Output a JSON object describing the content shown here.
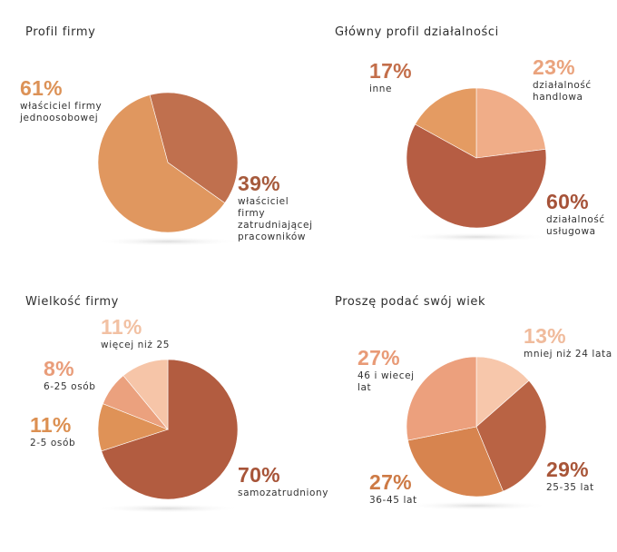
{
  "chart_data": [
    {
      "type": "pie",
      "title": "Profil firmy",
      "slices": [
        {
          "name": "właściciel firmy\nzatrudniającej\npracowników",
          "value": 39,
          "pct_label": "39%",
          "color": "#c0704e"
        },
        {
          "name": "właściciel firmy\njednoosobowej",
          "value": 61,
          "pct_label": "61%",
          "color": "#e0975f"
        }
      ],
      "label_colors": [
        "#a65a3c",
        "#dc9257"
      ]
    },
    {
      "type": "pie",
      "title": "Główny profil działalności",
      "slices": [
        {
          "name": "działalność\nhandlowa",
          "value": 23,
          "pct_label": "23%",
          "color": "#f0ad88"
        },
        {
          "name": "działalność\nusługowa",
          "value": 60,
          "pct_label": "60%",
          "color": "#b65d43"
        },
        {
          "name": "inne",
          "value": 17,
          "pct_label": "17%",
          "color": "#e49b62"
        }
      ],
      "label_colors": [
        "#eaa37d",
        "#a65238",
        "#c36e4a"
      ]
    },
    {
      "type": "pie",
      "title": "Wielkość firmy",
      "slices": [
        {
          "name": "samozatrudniony",
          "value": 70,
          "pct_label": "70%",
          "color": "#b25c40"
        },
        {
          "name": "2-5 osób",
          "value": 11,
          "pct_label": "11%",
          "color": "#df9257"
        },
        {
          "name": "6-25 osób",
          "value": 8,
          "pct_label": "8%",
          "color": "#eba17e"
        },
        {
          "name": "więcej niż 25",
          "value": 11,
          "pct_label": "11%",
          "color": "#f6c5a8"
        }
      ],
      "label_colors": [
        "#a75438",
        "#dc9052",
        "#e99d7a",
        "#f2c1a3"
      ]
    },
    {
      "type": "pie",
      "title": "Proszę podać swój wiek",
      "slices": [
        {
          "name": "mniej niż 24 lata",
          "value": 13,
          "pct_label": "13%",
          "color": "#f7c7ab"
        },
        {
          "name": "25-35 lat",
          "value": 29,
          "pct_label": "29%",
          "color": "#b96344"
        },
        {
          "name": "36-45 lat",
          "value": 27,
          "pct_label": "27%",
          "color": "#d7844f"
        },
        {
          "name": "46 i wiecej\nlat",
          "value": 27,
          "pct_label": "27%",
          "color": "#eca07d"
        }
      ],
      "label_colors": [
        "#f0bb9c",
        "#a85538",
        "#cd7a45",
        "#e89a76"
      ]
    }
  ]
}
